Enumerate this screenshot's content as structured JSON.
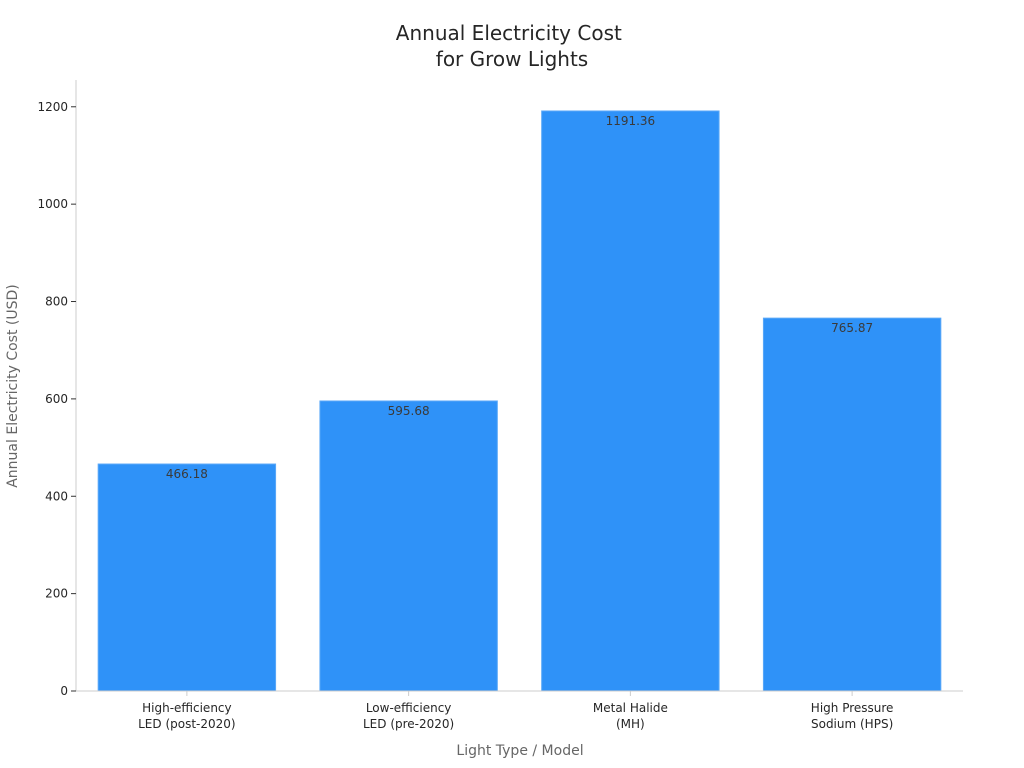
{
  "chart_data": {
    "type": "bar",
    "title": [
      "Annual Electricity Cost",
      "for Grow Lights"
    ],
    "xlabel": "Light Type / Model",
    "ylabel": "Annual Electricity Cost (USD)",
    "categories": [
      [
        "High-efficiency",
        "LED (post-2020)"
      ],
      [
        "Low-efficiency",
        "LED (pre-2020)"
      ],
      [
        "Metal Halide",
        "(MH)"
      ],
      [
        "High Pressure",
        "Sodium (HPS)"
      ]
    ],
    "values": [
      466.18,
      595.68,
      1191.36,
      765.87
    ],
    "data_labels": [
      "466.18",
      "595.68",
      "1191.36",
      "765.87"
    ],
    "ylim": [
      0,
      1255
    ],
    "yticks": [
      0,
      200,
      400,
      600,
      800,
      1000,
      1200
    ],
    "ytick_labels": [
      "0",
      "200",
      "400",
      "600",
      "800",
      "1000",
      "1200"
    ],
    "grid": false,
    "legend": "none",
    "bar_color": "#2f92f8",
    "axis_color": "#cccccc"
  }
}
